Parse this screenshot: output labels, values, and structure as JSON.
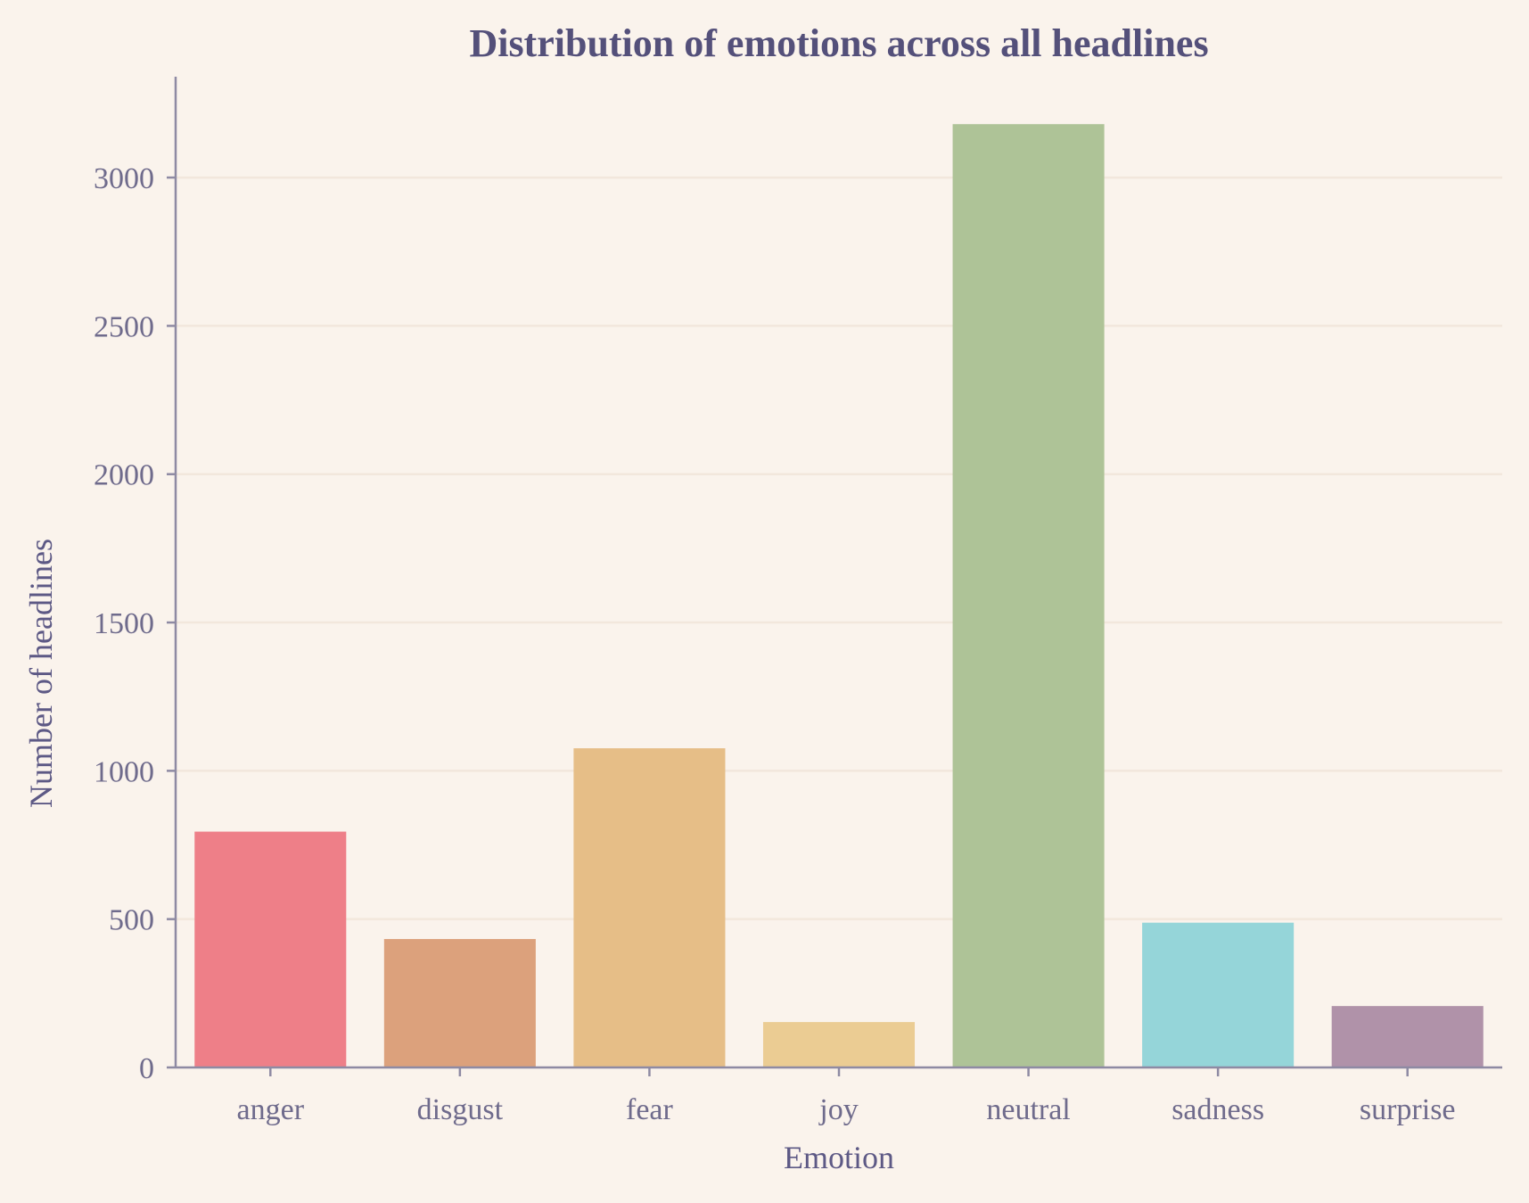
{
  "chart_data": {
    "type": "bar",
    "title": "Distribution of emotions across all headlines",
    "xlabel": "Emotion",
    "ylabel": "Number of headlines",
    "categories": [
      "anger",
      "disgust",
      "fear",
      "joy",
      "neutral",
      "sadness",
      "surprise"
    ],
    "values": [
      795,
      433,
      1076,
      153,
      3180,
      488,
      207
    ],
    "colors": [
      "#ee7f88",
      "#dca17c",
      "#e6be87",
      "#ebcc93",
      "#aec397",
      "#95d5d9",
      "#b092a9"
    ],
    "yticks": [
      0,
      500,
      1000,
      1500,
      2000,
      2500,
      3000
    ],
    "ytick_labels": [
      "0",
      "500",
      "1000",
      "1500",
      "2000",
      "2500",
      "3000"
    ],
    "ylim": [
      0,
      3340
    ],
    "grid": "y",
    "legend": "none"
  }
}
